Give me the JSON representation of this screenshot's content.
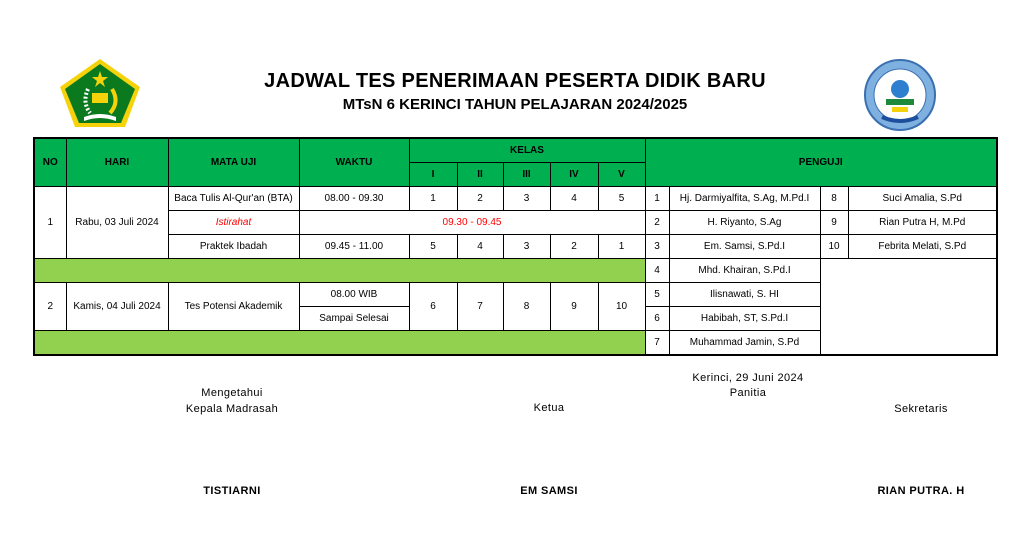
{
  "header": {
    "title": "JADWAL TES PENERIMAAN PESERTA DIDIK BARU",
    "subtitle": "MTsN 6 KERINCI TAHUN PELAJARAN 2024/2025",
    "logo_left": {
      "icon": "kemenag-logo",
      "lettering": "IKHLAS BERAMAL"
    },
    "logo_right": {
      "icon": "madrasah-logo",
      "lettering": "TANJUNG PAUH"
    }
  },
  "colors": {
    "header_green": "#00b050",
    "separator_green": "#92d050",
    "break_red": "#ff0000"
  },
  "table": {
    "headers": {
      "no": "NO",
      "hari": "HARI",
      "mata_uji": "MATA UJI",
      "waktu": "WAKTU",
      "kelas": "KELAS",
      "penguji": "PENGUJI",
      "kelas_cols": [
        "I",
        "II",
        "III",
        "IV",
        "V"
      ]
    },
    "day1": {
      "no": "1",
      "hari": "Rabu, 03 Juli 2024",
      "sessions": [
        {
          "mata_uji": "Baca Tulis Al-Qur'an (BTA)",
          "waktu": "08.00 - 09.30",
          "kelas": [
            "1",
            "2",
            "3",
            "4",
            "5"
          ]
        },
        {
          "mata_uji": "Istirahat",
          "waktu": "09.30 - 09.45"
        },
        {
          "mata_uji": "Praktek Ibadah",
          "waktu": "09.45 - 11.00",
          "kelas": [
            "5",
            "4",
            "3",
            "2",
            "1"
          ]
        }
      ]
    },
    "day2": {
      "no": "2",
      "hari": "Kamis, 04 Juli 2024",
      "mata_uji": "Tes Potensi Akademik",
      "waktu_start": "08.00 WIB",
      "waktu_end": "Sampai Selesai",
      "kelas": [
        "6",
        "7",
        "8",
        "9",
        "10"
      ]
    },
    "penguji": [
      {
        "no": "1",
        "name": "Hj. Darmiyalfita, S.Ag, M.Pd.I"
      },
      {
        "no": "2",
        "name": "H. Riyanto, S.Ag"
      },
      {
        "no": "3",
        "name": "Em. Samsi, S.Pd.I"
      },
      {
        "no": "4",
        "name": "Mhd. Khairan, S.Pd.I"
      },
      {
        "no": "5",
        "name": "Ilisnawati, S. HI"
      },
      {
        "no": "6",
        "name": "Habibah, ST, S.Pd.I"
      },
      {
        "no": "7",
        "name": "Muhammad Jamin, S.Pd"
      },
      {
        "no": "8",
        "name": "Suci Amalia, S.Pd"
      },
      {
        "no": "9",
        "name": "Rian Putra H, M.Pd"
      },
      {
        "no": "10",
        "name": "Febrita Melati, S.Pd"
      }
    ]
  },
  "signatures": {
    "left": {
      "line1": "Mengetahui",
      "line2": "Kepala Madrasah",
      "name": "TISTIARNI"
    },
    "place_date": "Kerinci, 29 Juni 2024",
    "panitia": "Panitia",
    "center": {
      "role": "Ketua",
      "name": "EM SAMSI"
    },
    "right": {
      "role": "Sekretaris",
      "name": "RIAN PUTRA. H"
    }
  }
}
